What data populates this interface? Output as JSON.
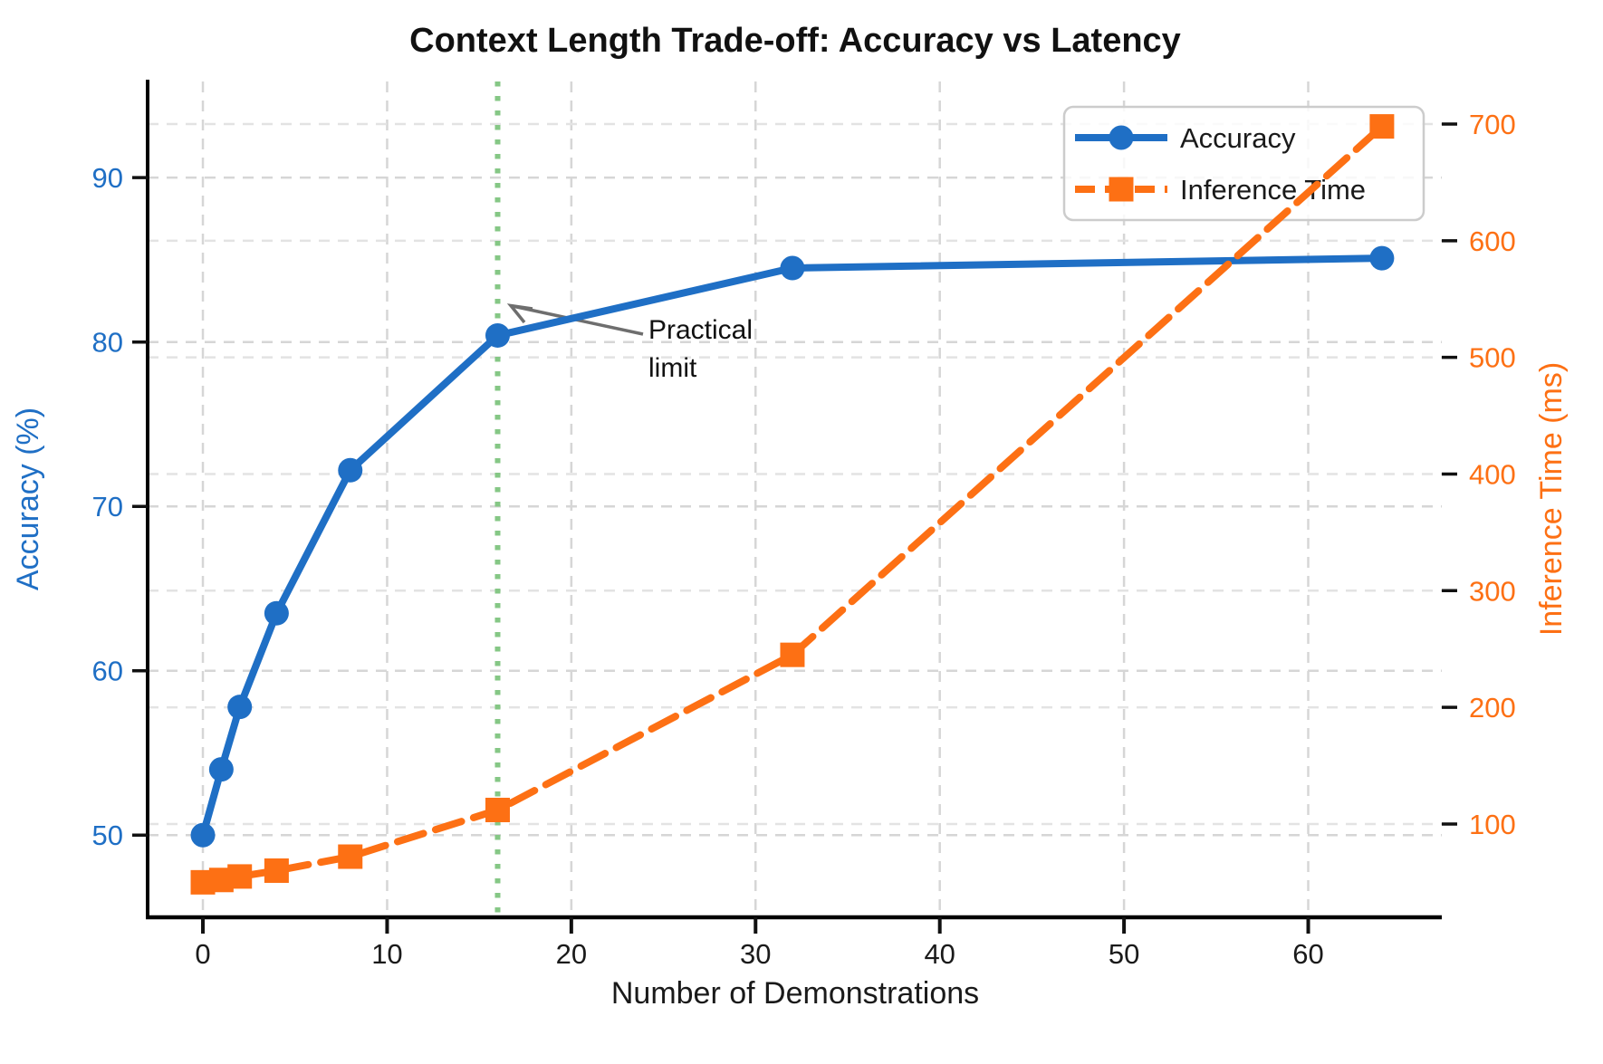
{
  "chart_data": {
    "type": "line",
    "title": "Context Length Trade-off: Accuracy vs Latency",
    "xlabel": "Number of Demonstrations",
    "ylabel_left": "Accuracy (%)",
    "ylabel_right": "Inference Time (ms)",
    "x": [
      0,
      1,
      2,
      4,
      8,
      16,
      32,
      64
    ],
    "series": [
      {
        "name": "Accuracy",
        "axis": "left",
        "color": "#1f6fc5",
        "line_style": "solid",
        "marker": "circle",
        "values": [
          50.0,
          54.0,
          57.8,
          63.5,
          72.2,
          80.4,
          84.5,
          85.1
        ]
      },
      {
        "name": "Inference Time",
        "axis": "right",
        "color": "#fd7014",
        "line_style": "dashed",
        "marker": "square",
        "values": [
          50,
          52,
          55,
          60,
          72,
          112,
          245,
          698
        ]
      }
    ],
    "xlim": [
      -3.0,
      67.25
    ],
    "ylim_left": [
      45.0,
      95.85
    ],
    "ylim_right": [
      20,
      736.5
    ],
    "xticks": [
      0,
      10,
      20,
      30,
      40,
      50,
      60
    ],
    "yticks_left": [
      50,
      60,
      70,
      80,
      90
    ],
    "yticks_right": [
      100,
      200,
      300,
      400,
      500,
      600,
      700
    ],
    "grid": true,
    "legend": {
      "position": "upper right",
      "items": [
        "Accuracy",
        "Inference Time"
      ]
    },
    "vline": {
      "x": 16,
      "color": "#85c785",
      "style": "dotted"
    },
    "annotation": {
      "line1": "Practical",
      "line2": "limit",
      "points_to_x": 16
    }
  }
}
